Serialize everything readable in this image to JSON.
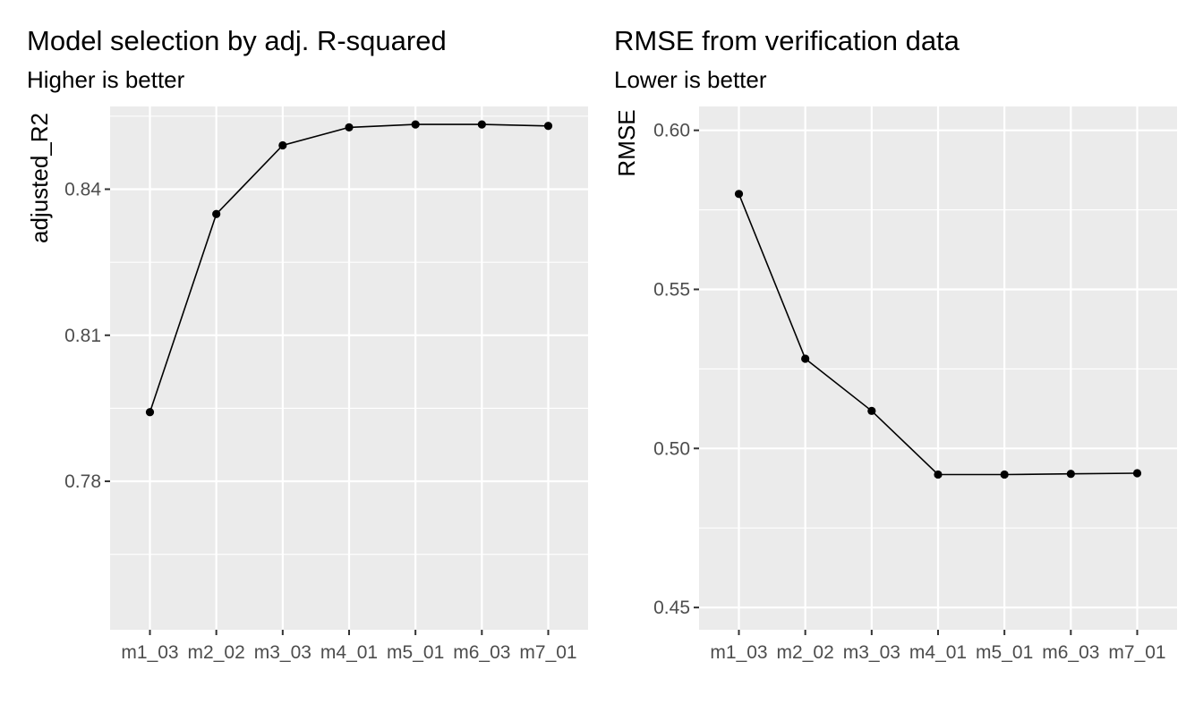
{
  "chart_data": [
    {
      "type": "line",
      "title": "Model selection by adj. R-squared",
      "subtitle": "Higher is better",
      "xlabel": "",
      "ylabel": "adjusted_R2",
      "categories": [
        "m1_03",
        "m2_02",
        "m3_03",
        "m4_01",
        "m5_01",
        "m6_03",
        "m7_01"
      ],
      "values": [
        0.7942,
        0.8349,
        0.849,
        0.8527,
        0.8533,
        0.8533,
        0.853
      ],
      "ylim": [
        0.7495,
        0.857
      ],
      "yticks": [
        0.78,
        0.81,
        0.84
      ],
      "ytick_labels": [
        "0.78",
        "0.81",
        "0.84"
      ],
      "grid": true,
      "legend": "none",
      "colors": {
        "panel": "#ebebeb",
        "grid": "#ffffff",
        "line": "#000000",
        "point": "#000000"
      }
    },
    {
      "type": "line",
      "title": "RMSE from verification data",
      "subtitle": "Lower is better",
      "xlabel": "",
      "ylabel": "RMSE",
      "categories": [
        "m1_03",
        "m2_02",
        "m3_03",
        "m4_01",
        "m5_01",
        "m6_03",
        "m7_01"
      ],
      "values": [
        0.58,
        0.5282,
        0.5118,
        0.4918,
        0.4918,
        0.492,
        0.4922
      ],
      "ylim": [
        0.443,
        0.6075
      ],
      "yticks": [
        0.45,
        0.5,
        0.55,
        0.6
      ],
      "ytick_labels": [
        "0.45",
        "0.50",
        "0.55",
        "0.60"
      ],
      "grid": true,
      "legend": "none",
      "colors": {
        "panel": "#ebebeb",
        "grid": "#ffffff",
        "line": "#000000",
        "point": "#000000"
      }
    }
  ]
}
